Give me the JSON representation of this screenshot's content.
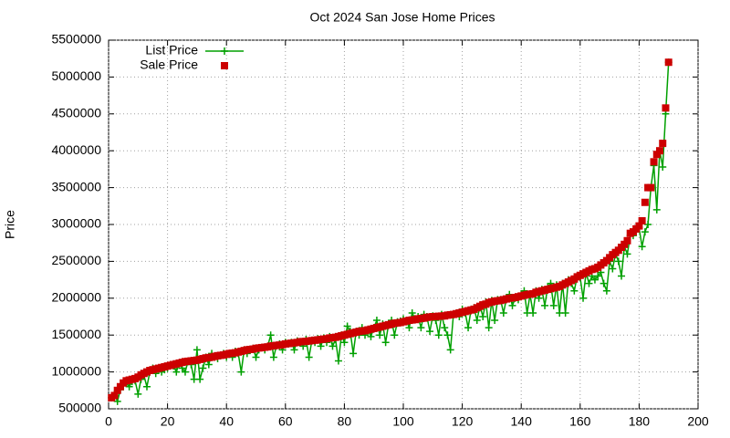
{
  "chart_data": {
    "type": "line",
    "title": "Oct 2024 San Jose Home Prices",
    "ylabel": "Price",
    "xlim": [
      0,
      200
    ],
    "xticks": [
      0,
      20,
      40,
      60,
      80,
      100,
      120,
      140,
      160,
      180,
      200
    ],
    "ylim": [
      500000,
      5500000
    ],
    "yticks": [
      500000,
      1000000,
      1500000,
      2000000,
      2500000,
      3000000,
      3500000,
      4000000,
      4500000,
      5000000,
      5500000
    ],
    "grid": true,
    "legend": "top-left",
    "x": [
      1,
      2,
      3,
      4,
      5,
      6,
      7,
      8,
      9,
      10,
      11,
      12,
      13,
      14,
      15,
      16,
      17,
      18,
      19,
      20,
      21,
      22,
      23,
      24,
      25,
      26,
      27,
      28,
      29,
      30,
      31,
      32,
      33,
      34,
      35,
      36,
      37,
      38,
      39,
      40,
      41,
      42,
      43,
      44,
      45,
      46,
      47,
      48,
      49,
      50,
      51,
      52,
      53,
      54,
      55,
      56,
      57,
      58,
      59,
      60,
      61,
      62,
      63,
      64,
      65,
      66,
      67,
      68,
      69,
      70,
      71,
      72,
      73,
      74,
      75,
      76,
      77,
      78,
      79,
      80,
      81,
      82,
      83,
      84,
      85,
      86,
      87,
      88,
      89,
      90,
      91,
      92,
      93,
      94,
      95,
      96,
      97,
      98,
      99,
      100,
      101,
      102,
      103,
      104,
      105,
      106,
      107,
      108,
      109,
      110,
      111,
      112,
      113,
      114,
      115,
      116,
      117,
      118,
      119,
      120,
      121,
      122,
      123,
      124,
      125,
      126,
      127,
      128,
      129,
      130,
      131,
      132,
      133,
      134,
      135,
      136,
      137,
      138,
      139,
      140,
      141,
      142,
      143,
      144,
      145,
      146,
      147,
      148,
      149,
      150,
      151,
      152,
      153,
      154,
      155,
      156,
      157,
      158,
      159,
      160,
      161,
      162,
      163,
      164,
      165,
      166,
      167,
      168,
      169,
      170,
      171,
      172,
      173,
      174,
      175,
      176,
      177,
      178,
      179,
      180,
      181,
      182,
      183,
      184,
      185,
      186,
      187,
      188,
      189,
      190
    ],
    "series": [
      {
        "name": "List Price",
        "color": "#00a000",
        "mode": "linespoints",
        "values": [
          650000,
          700000,
          600000,
          760000,
          820000,
          850000,
          800000,
          870000,
          880000,
          700000,
          900000,
          950000,
          800000,
          1000000,
          1050000,
          980000,
          1050000,
          1000000,
          1030000,
          1050000,
          1100000,
          1080000,
          1000000,
          1120000,
          1050000,
          1000000,
          1150000,
          1100000,
          900000,
          1300000,
          900000,
          1050000,
          1200000,
          1100000,
          1250000,
          1200000,
          1180000,
          1220000,
          1250000,
          1200000,
          1250000,
          1200000,
          1280000,
          1250000,
          1000000,
          1300000,
          1250000,
          1300000,
          1320000,
          1200000,
          1300000,
          1330000,
          1300000,
          1350000,
          1500000,
          1200000,
          1360000,
          1380000,
          1300000,
          1400000,
          1380000,
          1400000,
          1300000,
          1420000,
          1400000,
          1350000,
          1440000,
          1200000,
          1430000,
          1400000,
          1450000,
          1350000,
          1460000,
          1400000,
          1480000,
          1350000,
          1440000,
          1150000,
          1500000,
          1400000,
          1620000,
          1550000,
          1250000,
          1550000,
          1500000,
          1600000,
          1500000,
          1570000,
          1480000,
          1600000,
          1700000,
          1500000,
          1650000,
          1400000,
          1650000,
          1700000,
          1500000,
          1680000,
          1690000,
          1720000,
          1700000,
          1600000,
          1800000,
          1720000,
          1750000,
          1600000,
          1780000,
          1750000,
          1550000,
          1760000,
          1700000,
          1500000,
          1780000,
          1600000,
          1500000,
          1300000,
          1780000,
          1800000,
          1750000,
          1850000,
          1800000,
          1600000,
          1850000,
          1870000,
          1700000,
          1900000,
          1750000,
          1950000,
          1600000,
          1970000,
          1700000,
          1980000,
          1980000,
          1800000,
          2000000,
          2050000,
          1900000,
          2000000,
          1980000,
          2050000,
          2100000,
          1800000,
          2050000,
          1800000,
          2100000,
          2000000,
          2120000,
          1900000,
          2150000,
          2200000,
          1900000,
          2180000,
          1800000,
          2200000,
          1800000,
          2250000,
          2200000,
          2100000,
          2300000,
          2280000,
          2000000,
          2350000,
          2200000,
          2300000,
          2250000,
          2300000,
          2350000,
          2200000,
          2100000,
          2500000,
          2400000,
          2600000,
          2500000,
          2300000,
          2700000,
          2600000,
          2850000,
          2850000,
          2900000,
          2950000,
          2700000,
          2900000,
          3000000,
          3500000,
          3800000,
          3200000,
          4000000,
          3780000,
          4500000,
          5200000
        ]
      },
      {
        "name": "Sale Price",
        "color": "#cc0000",
        "mode": "points",
        "values": [
          650000,
          680000,
          750000,
          800000,
          850000,
          880000,
          890000,
          900000,
          910000,
          930000,
          960000,
          980000,
          1000000,
          1020000,
          1030000,
          1040000,
          1050000,
          1060000,
          1070000,
          1080000,
          1090000,
          1100000,
          1110000,
          1120000,
          1130000,
          1140000,
          1145000,
          1150000,
          1155000,
          1160000,
          1170000,
          1180000,
          1190000,
          1195000,
          1200000,
          1210000,
          1220000,
          1225000,
          1230000,
          1240000,
          1250000,
          1255000,
          1260000,
          1270000,
          1280000,
          1290000,
          1300000,
          1305000,
          1310000,
          1320000,
          1325000,
          1330000,
          1335000,
          1340000,
          1350000,
          1355000,
          1360000,
          1365000,
          1370000,
          1380000,
          1385000,
          1390000,
          1395000,
          1400000,
          1410000,
          1412000,
          1415000,
          1420000,
          1425000,
          1430000,
          1435000,
          1440000,
          1445000,
          1450000,
          1460000,
          1465000,
          1470000,
          1480000,
          1490000,
          1500000,
          1510000,
          1520000,
          1530000,
          1540000,
          1550000,
          1555000,
          1560000,
          1570000,
          1580000,
          1590000,
          1600000,
          1610000,
          1620000,
          1630000,
          1640000,
          1650000,
          1660000,
          1665000,
          1670000,
          1680000,
          1690000,
          1700000,
          1705000,
          1710000,
          1720000,
          1725000,
          1730000,
          1740000,
          1745000,
          1750000,
          1752000,
          1755000,
          1758000,
          1760000,
          1770000,
          1775000,
          1780000,
          1790000,
          1800000,
          1810000,
          1820000,
          1830000,
          1840000,
          1850000,
          1870000,
          1890000,
          1910000,
          1920000,
          1940000,
          1950000,
          1960000,
          1965000,
          1970000,
          1980000,
          1990000,
          2000000,
          2005000,
          2010000,
          2020000,
          2030000,
          2040000,
          2050000,
          2055000,
          2060000,
          2080000,
          2090000,
          2100000,
          2110000,
          2120000,
          2130000,
          2140000,
          2150000,
          2160000,
          2180000,
          2200000,
          2220000,
          2240000,
          2260000,
          2290000,
          2310000,
          2330000,
          2350000,
          2370000,
          2390000,
          2400000,
          2420000,
          2450000,
          2480000,
          2510000,
          2550000,
          2590000,
          2620000,
          2650000,
          2690000,
          2730000,
          2780000,
          2880000,
          2900000,
          2940000,
          2980000,
          3050000,
          3300000,
          3500000,
          3500000,
          3850000,
          3950000,
          4000000,
          4100000,
          4580000,
          5200000
        ]
      }
    ]
  }
}
